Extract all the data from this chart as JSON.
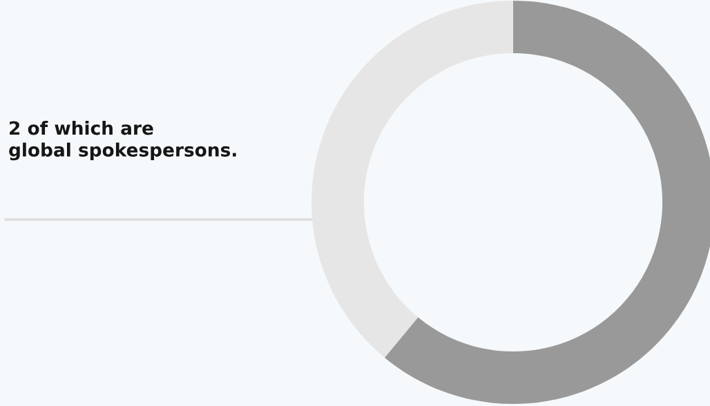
{
  "chart_data": {
    "type": "donut",
    "categories": [
      null,
      null
    ],
    "values": [
      61,
      39
    ],
    "colors": [
      "#999999",
      "#e6e6e6"
    ],
    "annotations": [
      "2 of which are\nglobal spokespersons."
    ]
  }
}
